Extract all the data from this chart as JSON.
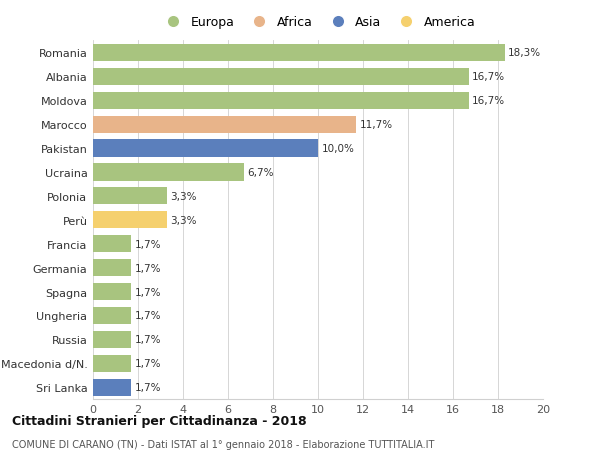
{
  "countries": [
    "Romania",
    "Albania",
    "Moldova",
    "Marocco",
    "Pakistan",
    "Ucraina",
    "Polonia",
    "Perù",
    "Francia",
    "Germania",
    "Spagna",
    "Ungheria",
    "Russia",
    "Macedonia d/N.",
    "Sri Lanka"
  ],
  "values": [
    18.3,
    16.7,
    16.7,
    11.7,
    10.0,
    6.7,
    3.3,
    3.3,
    1.7,
    1.7,
    1.7,
    1.7,
    1.7,
    1.7,
    1.7
  ],
  "labels": [
    "18,3%",
    "16,7%",
    "16,7%",
    "11,7%",
    "10,0%",
    "6,7%",
    "3,3%",
    "3,3%",
    "1,7%",
    "1,7%",
    "1,7%",
    "1,7%",
    "1,7%",
    "1,7%",
    "1,7%"
  ],
  "continents": [
    "Europa",
    "Europa",
    "Europa",
    "Africa",
    "Asia",
    "Europa",
    "Europa",
    "America",
    "Europa",
    "Europa",
    "Europa",
    "Europa",
    "Europa",
    "Europa",
    "Asia"
  ],
  "colors": {
    "Europa": "#a8c47f",
    "Africa": "#e8b48a",
    "Asia": "#5b7fbc",
    "America": "#f5d06e"
  },
  "xlim": [
    0,
    20
  ],
  "xticks": [
    0,
    2,
    4,
    6,
    8,
    10,
    12,
    14,
    16,
    18,
    20
  ],
  "title": "Cittadini Stranieri per Cittadinanza - 2018",
  "subtitle": "COMUNE DI CARANO (TN) - Dati ISTAT al 1° gennaio 2018 - Elaborazione TUTTITALIA.IT",
  "background_color": "#ffffff",
  "grid_color": "#d0d0d0",
  "bar_height": 0.72,
  "legend_order": [
    "Europa",
    "Africa",
    "Asia",
    "America"
  ]
}
